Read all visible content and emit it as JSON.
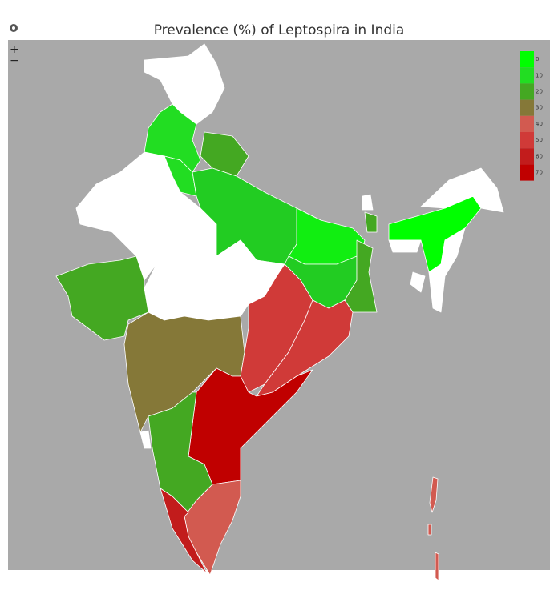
{
  "header": {
    "title": "Prevalence (%) of Leptospira in India"
  },
  "controls": {
    "zoom_in": "+",
    "zoom_out": "−"
  },
  "legend": {
    "items": [
      {
        "label": "0",
        "color": "#00ff00"
      },
      {
        "label": "10",
        "color": "#22dd22"
      },
      {
        "label": "20",
        "color": "#44a822"
      },
      {
        "label": "30",
        "color": "#857838"
      },
      {
        "label": "40",
        "color": "#d25a50"
      },
      {
        "label": "50",
        "color": "#d03a38"
      },
      {
        "label": "60",
        "color": "#c21c1c"
      },
      {
        "label": "70",
        "color": "#c00000"
      }
    ]
  }
}
